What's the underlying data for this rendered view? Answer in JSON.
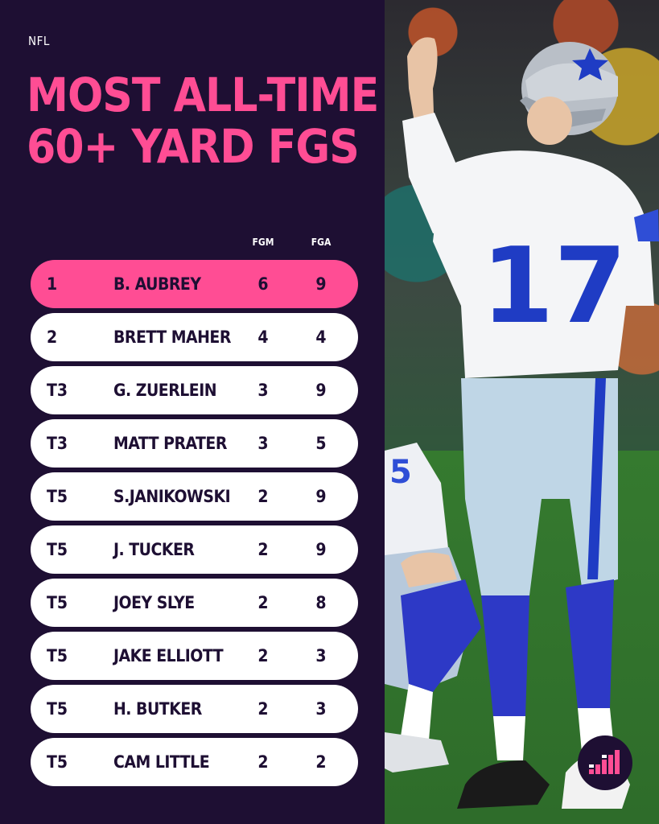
{
  "header": {
    "league": "NFL",
    "title_line1": "MOST ALL-TIME",
    "title_line2": "60+ YARD FGS"
  },
  "columns": {
    "fgm": "FGM",
    "fga": "FGA"
  },
  "rows": [
    {
      "rank": "1",
      "name": "B. AUBREY",
      "fgm": "6",
      "fga": "9"
    },
    {
      "rank": "2",
      "name": "BRETT MAHER",
      "fgm": "4",
      "fga": "4"
    },
    {
      "rank": "T3",
      "name": "G. ZUERLEIN",
      "fgm": "3",
      "fga": "9"
    },
    {
      "rank": "T3",
      "name": "MATT PRATER",
      "fgm": "3",
      "fga": "5"
    },
    {
      "rank": "T5",
      "name": "S.JANIKOWSKI",
      "fgm": "2",
      "fga": "9"
    },
    {
      "rank": "T5",
      "name": "J. TUCKER",
      "fgm": "2",
      "fga": "9"
    },
    {
      "rank": "T5",
      "name": "JOEY SLYE",
      "fgm": "2",
      "fga": "8"
    },
    {
      "rank": "T5",
      "name": "JAKE ELLIOTT",
      "fgm": "2",
      "fga": "3"
    },
    {
      "rank": "T5",
      "name": "H. BUTKER",
      "fgm": "2",
      "fga": "3"
    },
    {
      "rank": "T5",
      "name": "CAM LITTLE",
      "fgm": "2",
      "fga": "2"
    }
  ],
  "photo": {
    "jersey_number": "17",
    "teammate_number": "5"
  },
  "colors": {
    "background": "#1e0f33",
    "accent": "#ff4d94",
    "row": "#ffffff"
  },
  "icons": {
    "brand": "bar-chart-logo-icon"
  }
}
